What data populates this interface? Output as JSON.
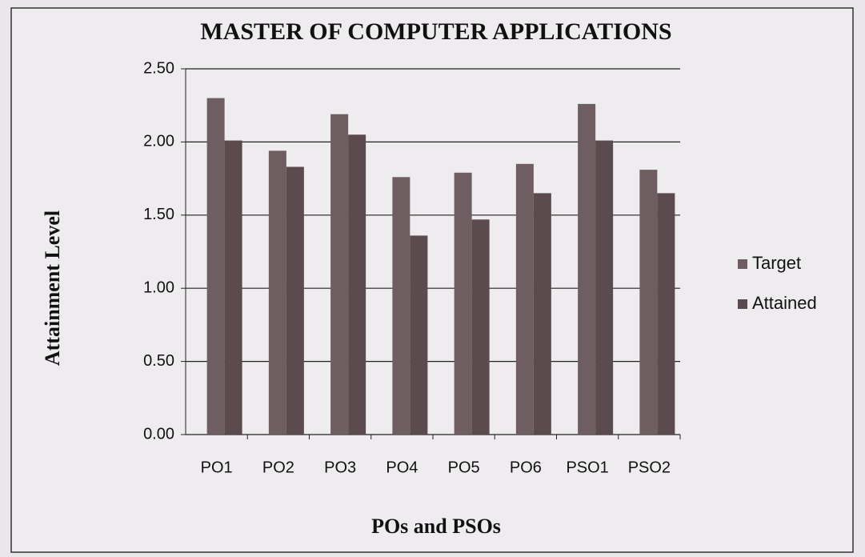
{
  "chart_data": {
    "type": "bar",
    "title": "MASTER OF COMPUTER APPLICATIONS",
    "x_label": "POs and PSOs",
    "y_label": "Attainment Level",
    "categories": [
      "PO1",
      "PO2",
      "PO3",
      "PO4",
      "PO5",
      "PO6",
      "PSO1",
      "PSO2"
    ],
    "series": [
      {
        "name": "Target",
        "color": "#6e5d61",
        "values": [
          2.3,
          1.94,
          2.19,
          1.76,
          1.79,
          1.85,
          2.26,
          1.81
        ]
      },
      {
        "name": "Attained",
        "color": "#5b4b4f",
        "values": [
          2.01,
          1.83,
          2.05,
          1.36,
          1.47,
          1.65,
          2.01,
          1.65
        ]
      }
    ],
    "ylim": [
      0,
      2.5
    ],
    "yticks": [
      {
        "value": 0,
        "label": "0.00"
      },
      {
        "value": 0.5,
        "label": "0.50"
      },
      {
        "value": 1,
        "label": "1.00"
      },
      {
        "value": 1.5,
        "label": "1.50"
      },
      {
        "value": 2,
        "label": "2.00"
      },
      {
        "value": 2.5,
        "label": "2.50"
      }
    ],
    "grid": true,
    "legend": "right"
  }
}
